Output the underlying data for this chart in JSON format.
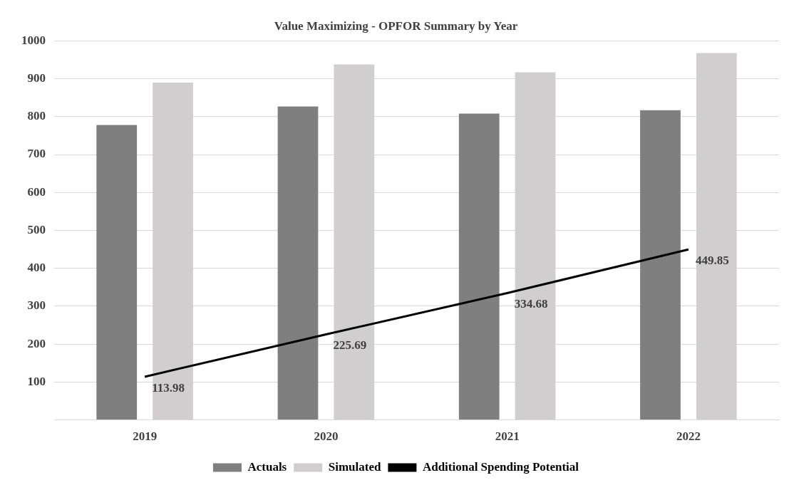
{
  "chart_data": {
    "type": "bar",
    "title": "Value Maximizing - OPFOR Summary by Year",
    "categories": [
      "2019",
      "2020",
      "2021",
      "2022"
    ],
    "series": [
      {
        "name": "Actuals",
        "color": "#7f7f7f",
        "values": [
          778,
          827,
          808,
          817
        ]
      },
      {
        "name": "Simulated",
        "color": "#d0cece",
        "values": [
          890,
          938,
          917,
          968
        ]
      },
      {
        "name": "Additional Spending Potential",
        "type": "line",
        "color": "#000000",
        "values": [
          113.98,
          225.69,
          334.68,
          449.85
        ],
        "data_labels": true,
        "marker": "none"
      }
    ],
    "ylim": [
      0,
      1000
    ],
    "yticks": [
      {
        "value": 0,
        "label": null
      },
      100,
      200,
      300,
      400,
      500,
      600,
      700,
      800,
      900,
      1000
    ],
    "grid": "y",
    "legend": "bottom"
  }
}
